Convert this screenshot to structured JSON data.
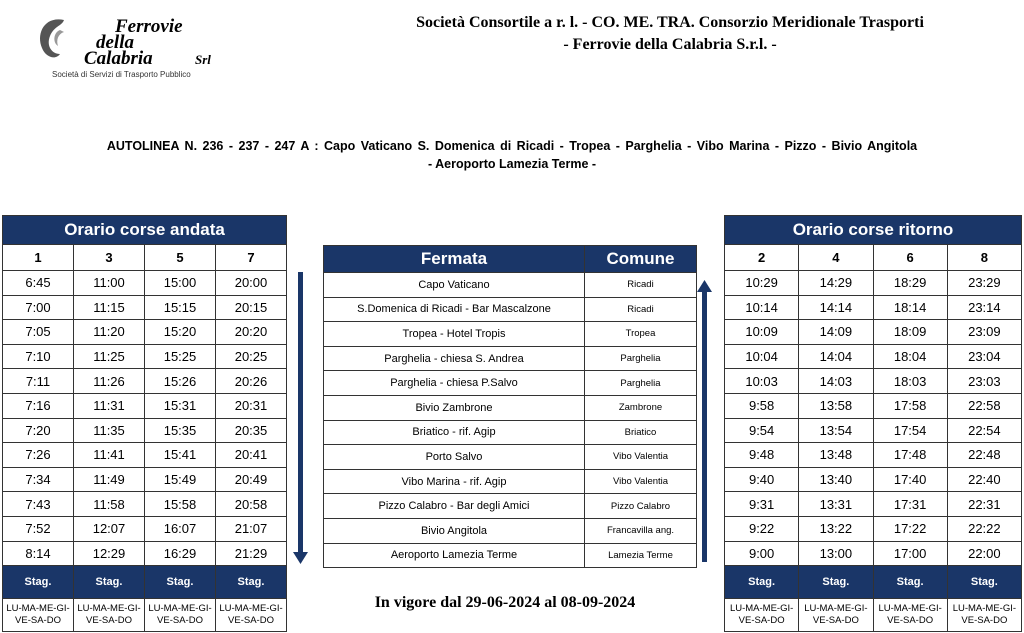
{
  "header": {
    "logo": {
      "line1": "Ferrovie",
      "line2": "della",
      "line3": "Calabria",
      "suffix": "Srl",
      "tagline": "Società di Servizi di Trasporto Pubblico"
    },
    "company_line1": "Società Consortile a r. l. - CO. ME. TRA. Consorzio Meridionale Trasporti",
    "company_line2": "- Ferrovie della Calabria S.r.l. -"
  },
  "route": {
    "line1": "AUTOLINEA N. 236 - 237 - 247 A : Capo Vaticano S. Domenica di Ricadi - Tropea - Parghelia - Vibo Marina - Pizzo - Bivio Angitola",
    "line2": "- Aeroporto Lamezia Terme -"
  },
  "andata": {
    "title": "Orario corse andata",
    "headers": [
      "1",
      "3",
      "5",
      "7"
    ],
    "rows": [
      [
        "6:45",
        "11:00",
        "15:00",
        "20:00"
      ],
      [
        "7:00",
        "11:15",
        "15:15",
        "20:15"
      ],
      [
        "7:05",
        "11:20",
        "15:20",
        "20:20"
      ],
      [
        "7:10",
        "11:25",
        "15:25",
        "20:25"
      ],
      [
        "7:11",
        "11:26",
        "15:26",
        "20:26"
      ],
      [
        "7:16",
        "11:31",
        "15:31",
        "20:31"
      ],
      [
        "7:20",
        "11:35",
        "15:35",
        "20:35"
      ],
      [
        "7:26",
        "11:41",
        "15:41",
        "20:41"
      ],
      [
        "7:34",
        "11:49",
        "15:49",
        "20:49"
      ],
      [
        "7:43",
        "11:58",
        "15:58",
        "20:58"
      ],
      [
        "7:52",
        "12:07",
        "16:07",
        "21:07"
      ],
      [
        "8:14",
        "12:29",
        "16:29",
        "21:29"
      ]
    ],
    "season": [
      "Stag.",
      "Stag.",
      "Stag.",
      "Stag."
    ],
    "days": [
      "LU-MA-ME-GI-VE-SA-DO",
      "LU-MA-ME-GI-VE-SA-DO",
      "LU-MA-ME-GI-VE-SA-DO",
      "LU-MA-ME-GI-VE-SA-DO"
    ]
  },
  "stops": {
    "headers": [
      "Fermata",
      "Comune"
    ],
    "rows": [
      [
        "Capo Vaticano",
        "Ricadi"
      ],
      [
        "S.Domenica di Ricadi - Bar Mascalzone",
        "Ricadi"
      ],
      [
        "Tropea - Hotel Tropis",
        "Tropea"
      ],
      [
        "Parghelia - chiesa S. Andrea",
        "Parghelia"
      ],
      [
        "Parghelia - chiesa P.Salvo",
        "Parghelia"
      ],
      [
        "Bivio Zambrone",
        "Zambrone"
      ],
      [
        "Briatico - rif. Agip",
        "Briatico"
      ],
      [
        "Porto Salvo",
        "Vibo Valentia"
      ],
      [
        "Vibo Marina - rif. Agip",
        "Vibo Valentia"
      ],
      [
        "Pizzo Calabro - Bar degli Amici",
        "Pizzo Calabro"
      ],
      [
        "Bivio Angitola",
        "Francavilla ang."
      ],
      [
        "Aeroporto Lamezia Terme",
        "Lamezia Terme"
      ]
    ]
  },
  "ritorno": {
    "title": "Orario corse ritorno",
    "headers": [
      "2",
      "4",
      "6",
      "8"
    ],
    "rows": [
      [
        "10:29",
        "14:29",
        "18:29",
        "23:29"
      ],
      [
        "10:14",
        "14:14",
        "18:14",
        "23:14"
      ],
      [
        "10:09",
        "14:09",
        "18:09",
        "23:09"
      ],
      [
        "10:04",
        "14:04",
        "18:04",
        "23:04"
      ],
      [
        "10:03",
        "14:03",
        "18:03",
        "23:03"
      ],
      [
        "9:58",
        "13:58",
        "17:58",
        "22:58"
      ],
      [
        "9:54",
        "13:54",
        "17:54",
        "22:54"
      ],
      [
        "9:48",
        "13:48",
        "17:48",
        "22:48"
      ],
      [
        "9:40",
        "13:40",
        "17:40",
        "22:40"
      ],
      [
        "9:31",
        "13:31",
        "17:31",
        "22:31"
      ],
      [
        "9:22",
        "13:22",
        "17:22",
        "22:22"
      ],
      [
        "9:00",
        "13:00",
        "17:00",
        "22:00"
      ]
    ],
    "season": [
      "Stag.",
      "Stag.",
      "Stag.",
      "Stag."
    ],
    "days": [
      "LU-MA-ME-GI-VE-SA-DO",
      "LU-MA-ME-GI-VE-SA-DO",
      "LU-MA-ME-GI-VE-SA-DO",
      "LU-MA-ME-GI-VE-SA-DO"
    ]
  },
  "validity": "In vigore dal 29-06-2024 al 08-09-2024"
}
